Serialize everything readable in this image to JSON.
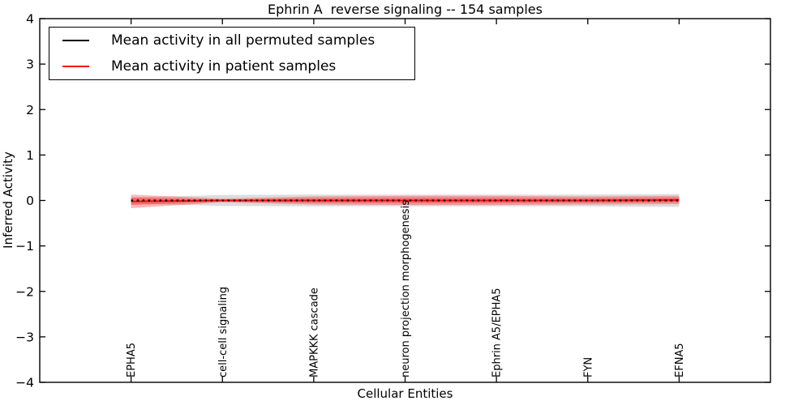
{
  "title": "Ephrin A  reverse signaling -- 154 samples",
  "legend": {
    "items": [
      {
        "label": "Mean activity in all permuted samples",
        "color": "#000000"
      },
      {
        "label": "Mean activity in patient samples",
        "color": "#ff0000"
      }
    ],
    "position": "upper left"
  },
  "chart_data": {
    "type": "line",
    "title": "Ephrin A  reverse signaling -- 154 samples",
    "xlabel": "Cellular Entities",
    "ylabel": "Inferred Activity",
    "xlim": [
      0,
      8
    ],
    "ylim": [
      -4,
      4
    ],
    "grid": false,
    "background": "#ffffff",
    "categories": [
      "EPHA5",
      "cell-cell signaling",
      "MAPKKK cascade",
      "neuron projection morphogenesis",
      "Ephrin A5/EPHA5",
      "FYN",
      "EFNA5"
    ],
    "category_x": [
      1,
      2,
      3,
      4,
      5,
      6,
      7
    ],
    "ytick_labels": [
      "4",
      "3",
      "2",
      "1",
      "0",
      "−1",
      "−2",
      "−3",
      "−4"
    ],
    "ytick_values": [
      4,
      3,
      2,
      1,
      0,
      -1,
      -2,
      -3,
      -4
    ],
    "series": [
      {
        "name": "Mean activity in all permuted samples",
        "color": "#000000",
        "line_style": "dashed",
        "values": [
          0.0,
          0.0,
          0.0,
          0.0,
          0.0,
          0.0,
          0.0
        ],
        "band_halfwidth": [
          0.07,
          0.12,
          0.13,
          0.13,
          0.13,
          0.13,
          0.14
        ],
        "band_color": "rgba(130,130,130,0.28)"
      },
      {
        "name": "Mean activity in patient samples",
        "color": "#ff0000",
        "line_style": "solid",
        "values": [
          -0.02,
          0.0,
          0.0,
          0.0,
          0.0,
          0.0,
          0.01
        ],
        "band_halfwidth": [
          0.15,
          0.04,
          0.09,
          0.1,
          0.1,
          0.09,
          0.09
        ],
        "band_color": "rgba(255,0,0,0.28)",
        "inner_band_fraction": 0.55,
        "inner_band_color": "rgba(255,0,0,0.32)"
      }
    ]
  }
}
